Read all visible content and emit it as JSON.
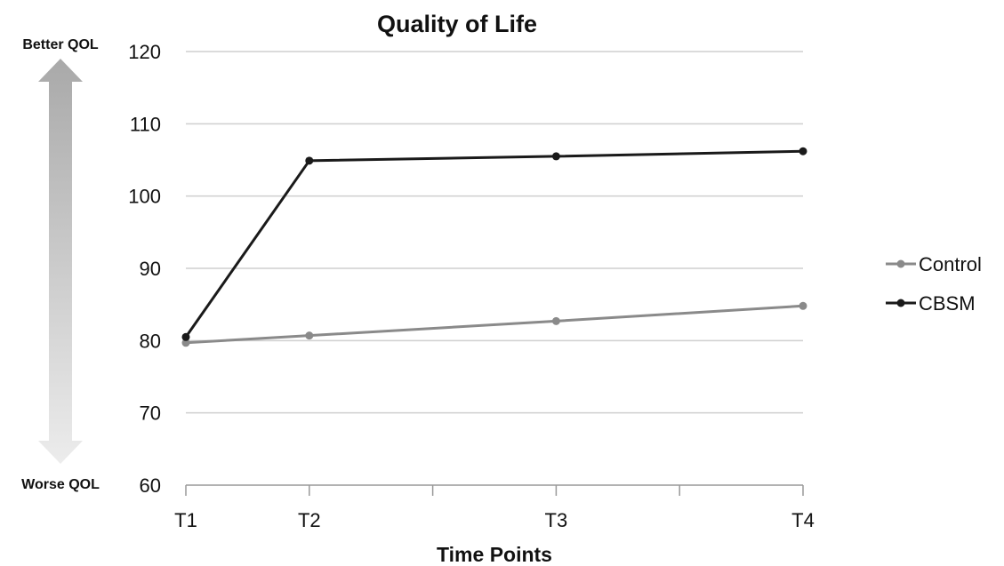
{
  "chart_data": {
    "type": "line",
    "title": "Quality of Life",
    "xlabel": "Time Points",
    "ylabel": "",
    "categories": [
      "T1",
      "T2",
      "T3",
      "T4"
    ],
    "x_positions": [
      0,
      1,
      3,
      5
    ],
    "x_range": [
      0,
      5
    ],
    "ylim": [
      60,
      120
    ],
    "yticks": [
      60,
      70,
      80,
      90,
      100,
      110,
      120
    ],
    "grid": true,
    "legend_position": "right",
    "series": [
      {
        "name": "Control",
        "values": [
          79.7,
          80.7,
          82.7,
          84.8
        ],
        "color": "#8a8a8a"
      },
      {
        "name": "CBSM",
        "values": [
          80.5,
          104.9,
          105.5,
          106.2
        ],
        "color": "#1a1a1a"
      }
    ],
    "annotations": {
      "top_label": "Better QOL",
      "bottom_label": "Worse QOL"
    }
  }
}
